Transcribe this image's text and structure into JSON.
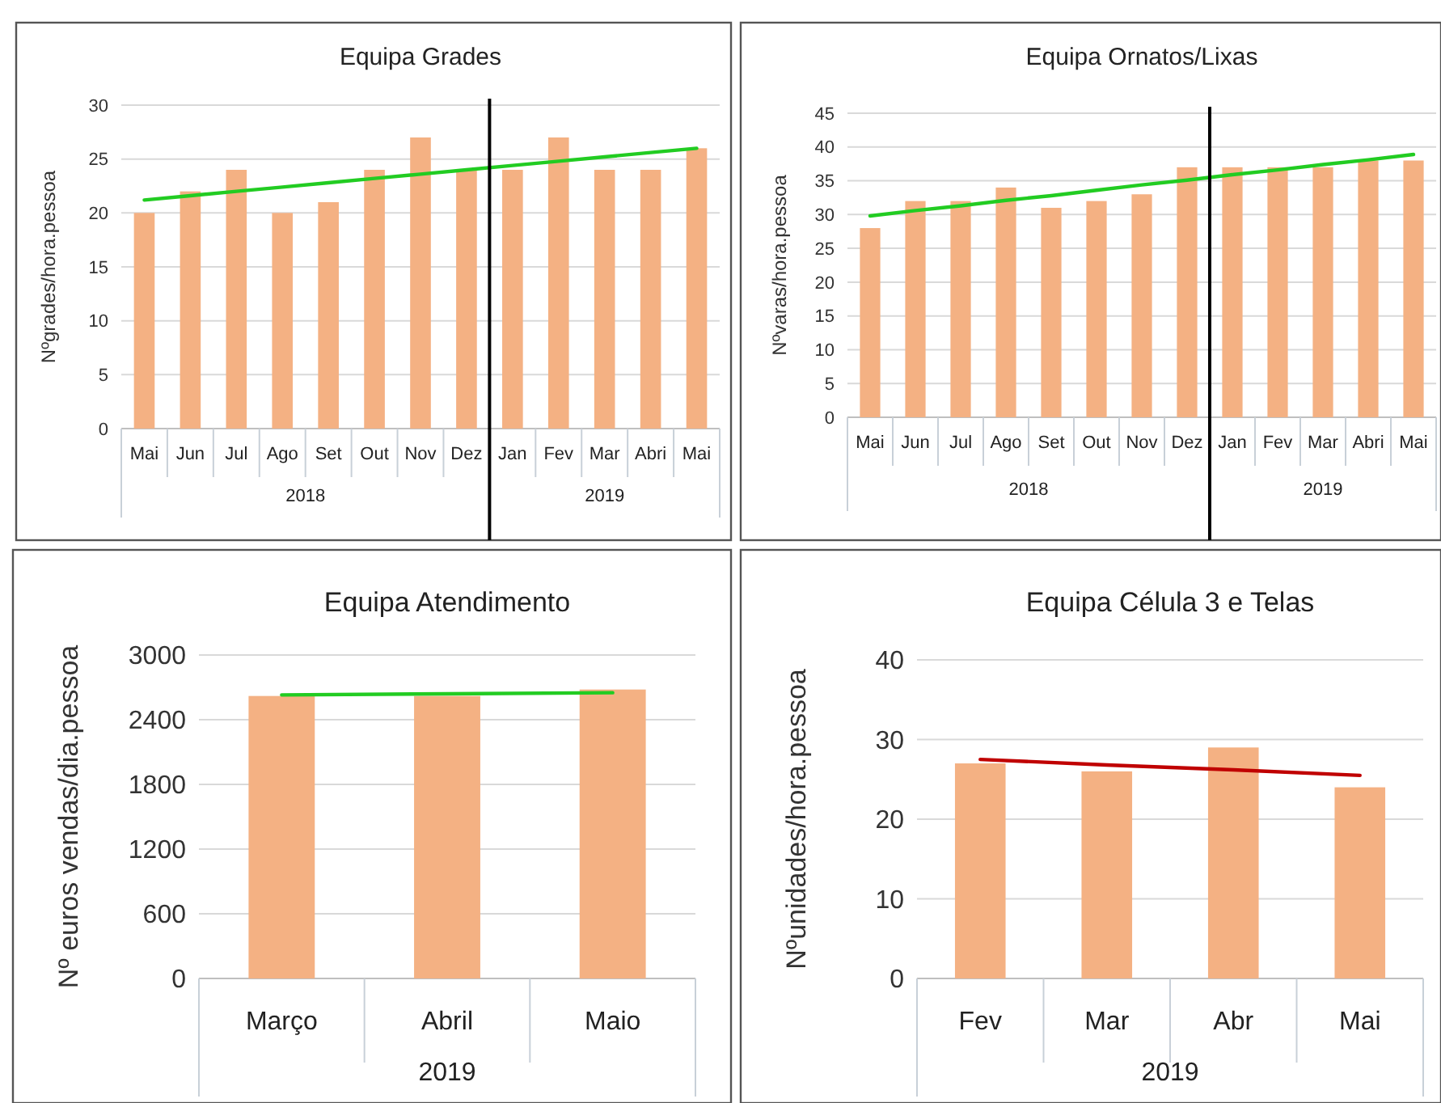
{
  "chart_data": [
    {
      "type": "bar",
      "title": "Equipa Grades",
      "ylabel": "Nºgrades/hora.pessoa",
      "categories": [
        "Mai",
        "Jun",
        "Jul",
        "Ago",
        "Set",
        "Out",
        "Nov",
        "Dez",
        "Jan",
        "Fev",
        "Mar",
        "Abri",
        "Mai"
      ],
      "ylim": [
        0,
        30
      ],
      "yticks": [
        0,
        5,
        10,
        15,
        20,
        25,
        30
      ],
      "grid": "y",
      "series": [
        {
          "color": "#f4b183",
          "values": [
            20,
            22,
            24,
            20,
            21,
            24,
            27,
            24,
            24,
            27,
            24,
            24,
            26
          ]
        },
        {
          "type": "line",
          "color": "#22cc22",
          "values": [
            21.2,
            21.6,
            22.0,
            22.4,
            22.8,
            23.2,
            23.6,
            24.0,
            24.4,
            24.8,
            25.2,
            25.6,
            26.0
          ]
        }
      ],
      "ref_lines": [
        {
          "axis": "x",
          "value": "Jan",
          "color": "#000000"
        }
      ],
      "annotations": [
        "2018",
        "2019"
      ]
    },
    {
      "type": "bar",
      "title": "Equipa Ornatos/Lixas",
      "ylabel": "Nºvaras/hora.pessoa",
      "categories": [
        "Mai",
        "Jun",
        "Jul",
        "Ago",
        "Set",
        "Out",
        "Nov",
        "Dez",
        "Jan",
        "Fev",
        "Mar",
        "Abri",
        "Mai"
      ],
      "ylim": [
        0,
        45
      ],
      "yticks": [
        0,
        5,
        10,
        15,
        20,
        25,
        30,
        35,
        40,
        45
      ],
      "grid": "y",
      "series": [
        {
          "color": "#f4b183",
          "values": [
            28,
            32,
            32,
            34,
            31,
            32,
            33,
            37,
            37,
            37,
            37,
            38,
            38
          ]
        },
        {
          "type": "line",
          "color": "#22cc22",
          "values": [
            29.8,
            30.6,
            31.3,
            32.1,
            32.8,
            33.6,
            34.4,
            35.1,
            35.9,
            36.6,
            37.4,
            38.1,
            38.9
          ]
        }
      ],
      "ref_lines": [
        {
          "axis": "x",
          "value": "Jan",
          "color": "#000000"
        }
      ],
      "annotations": [
        "2018",
        "2019"
      ]
    },
    {
      "type": "bar",
      "title": "Equipa Atendimento",
      "ylabel": "Nº euros vendas/dia.pessoa",
      "categories": [
        "Março",
        "Abril",
        "Maio"
      ],
      "ylim": [
        0,
        3000
      ],
      "yticks": [
        0,
        600,
        1200,
        1800,
        2400,
        3000
      ],
      "grid": "y",
      "series": [
        {
          "color": "#f4b183",
          "values": [
            2620,
            2620,
            2680
          ]
        },
        {
          "type": "line",
          "color": "#22cc22",
          "values": [
            2630,
            2640,
            2650
          ]
        }
      ],
      "annotations": [
        "2019"
      ]
    },
    {
      "type": "bar",
      "title": "Equipa Célula 3 e Telas",
      "ylabel": "Nºunidades/hora.pessoa",
      "categories": [
        "Fev",
        "Mar",
        "Abr",
        "Mai"
      ],
      "ylim": [
        0,
        40
      ],
      "yticks": [
        0,
        10,
        20,
        30,
        40
      ],
      "grid": "y",
      "series": [
        {
          "color": "#f4b183",
          "values": [
            27,
            26,
            29,
            24
          ]
        },
        {
          "type": "line",
          "color": "#c00000",
          "values": [
            27.5,
            26.8,
            26.2,
            25.5
          ]
        }
      ],
      "annotations": [
        "2019"
      ]
    }
  ]
}
